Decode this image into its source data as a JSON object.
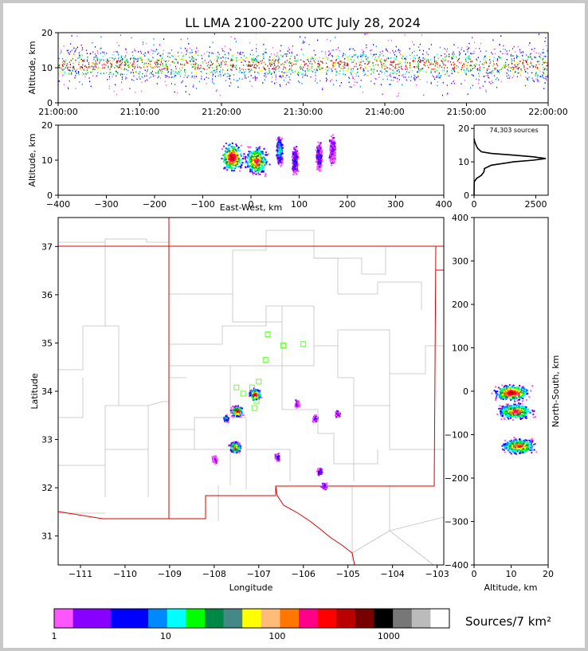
{
  "chart_data": [
    {
      "type": "scatter",
      "panel": "time-altitude",
      "title": "LL LMA 2100-2200 UTC July 28, 2024",
      "xlabel": "",
      "ylabel": "Altitude, km",
      "xticks": [
        "21:00:00",
        "21:10:00",
        "21:20:00",
        "21:30:00",
        "21:40:00",
        "21:50:00",
        "22:00:00"
      ],
      "yticks": [
        "0",
        "10",
        "20"
      ],
      "ylim": [
        0,
        20
      ],
      "band": {
        "center_km": 11,
        "typical_min_km": 6,
        "typical_max_km": 16
      }
    },
    {
      "type": "scatter",
      "panel": "east-west-altitude",
      "xlabel": "East-West, km",
      "ylabel": "Altitude, km",
      "xticks": [
        "−400",
        "−300",
        "−200",
        "−100",
        "0",
        "100",
        "200",
        "300",
        "400"
      ],
      "yticks": [
        "0",
        "10",
        "20"
      ],
      "xlim": [
        -400,
        400
      ],
      "ylim": [
        0,
        20
      ],
      "clusters": [
        {
          "x": -40,
          "y": 11,
          "peak": "dark-red"
        },
        {
          "x": 10,
          "y": 10,
          "peak": "red"
        },
        {
          "x": 58,
          "y": 13,
          "peak": "green"
        },
        {
          "x": 90,
          "y": 10,
          "peak": "blue"
        },
        {
          "x": 140,
          "y": 11,
          "peak": "blue"
        },
        {
          "x": 168,
          "y": 13,
          "peak": "purple"
        }
      ]
    },
    {
      "type": "line",
      "panel": "altitude-histogram",
      "annotation": "74,303 sources",
      "xticks": [
        "0",
        "2500"
      ],
      "yticks": [
        "0",
        "10",
        "20"
      ],
      "xlim": [
        0,
        3000
      ],
      "ylim": [
        0,
        21
      ],
      "points": [
        [
          0,
          0
        ],
        [
          5,
          4
        ],
        [
          100,
          5
        ],
        [
          300,
          6
        ],
        [
          400,
          7
        ],
        [
          420,
          8
        ],
        [
          700,
          9
        ],
        [
          1600,
          10
        ],
        [
          2400,
          10.5
        ],
        [
          2900,
          11
        ],
        [
          2400,
          11.5
        ],
        [
          1600,
          12
        ],
        [
          700,
          12.5
        ],
        [
          300,
          13
        ],
        [
          150,
          14
        ],
        [
          80,
          15
        ],
        [
          30,
          16
        ],
        [
          0,
          17
        ]
      ]
    },
    {
      "type": "scatter",
      "panel": "plan-view-map",
      "xlabel": "Longitude",
      "ylabel": "Latitude",
      "xticks": [
        "−111",
        "−110",
        "−109",
        "−108",
        "−107",
        "−106",
        "−105",
        "−104",
        "−103"
      ],
      "yticks": [
        "31",
        "32",
        "33",
        "34",
        "35",
        "36",
        "37"
      ],
      "xlim": [
        -111.5,
        -102.85
      ],
      "ylim": [
        30.4,
        37.6
      ],
      "stations": [
        {
          "lon": -106.8,
          "lat": 35.18
        },
        {
          "lon": -106.45,
          "lat": 34.95
        },
        {
          "lon": -106.0,
          "lat": 34.98
        },
        {
          "lon": -106.85,
          "lat": 34.65
        },
        {
          "lon": -107.0,
          "lat": 34.2
        },
        {
          "lon": -107.15,
          "lat": 34.08
        },
        {
          "lon": -107.5,
          "lat": 34.08
        },
        {
          "lon": -107.35,
          "lat": 33.95
        },
        {
          "lon": -107.05,
          "lat": 33.8
        },
        {
          "lon": -107.1,
          "lat": 33.65
        }
      ],
      "clusters": [
        {
          "lon": -107.1,
          "lat": 33.95,
          "peak": "dark-red"
        },
        {
          "lon": -107.5,
          "lat": 33.6,
          "peak": "dark-red"
        },
        {
          "lon": -107.75,
          "lat": 33.45,
          "peak": "green"
        },
        {
          "lon": -107.55,
          "lat": 32.85,
          "peak": "red"
        },
        {
          "lon": -106.6,
          "lat": 32.65,
          "peak": "blue"
        },
        {
          "lon": -108.0,
          "lat": 32.6,
          "peak": "purple"
        },
        {
          "lon": -105.25,
          "lat": 33.55,
          "peak": "blue"
        },
        {
          "lon": -105.75,
          "lat": 33.45,
          "peak": "blue"
        },
        {
          "lon": -106.15,
          "lat": 33.75,
          "peak": "purple"
        },
        {
          "lon": -105.65,
          "lat": 32.35,
          "peak": "blue"
        },
        {
          "lon": -105.55,
          "lat": 32.05,
          "peak": "blue"
        }
      ]
    },
    {
      "type": "scatter",
      "panel": "altitude-north-south",
      "xlabel": "Altitude, km",
      "ylabel": "North-South, km",
      "xticks": [
        "0",
        "10",
        "20"
      ],
      "yticks": [
        "−400",
        "−300",
        "−200",
        "−100",
        "0",
        "100",
        "200",
        "300",
        "400"
      ],
      "xlim": [
        0,
        20
      ],
      "ylim": [
        -400,
        400
      ],
      "clusters": [
        {
          "x": 10,
          "y": -2,
          "peak": "dark-red"
        },
        {
          "x": 11,
          "y": -45,
          "peak": "red"
        },
        {
          "x": 12,
          "y": -125,
          "peak": "red"
        }
      ]
    }
  ],
  "colorbar": {
    "label": "Sources/7 km²",
    "tick_labels": [
      "1",
      "10",
      "100",
      "1000"
    ],
    "tick_values": [
      1,
      10,
      100,
      1000
    ],
    "range": [
      1,
      3500
    ],
    "colors": [
      "#ff55ff",
      "#8800ff",
      "#8800ff",
      "#0000ff",
      "#0000ff",
      "#0088ff",
      "#00ffff",
      "#00ff00",
      "#008844",
      "#448888",
      "#ffff00",
      "#ffbb77",
      "#ff7700",
      "#ff0088",
      "#ff0000",
      "#bb0000",
      "#770000",
      "#000000",
      "#777777",
      "#bbbbbb",
      "#ffffff"
    ]
  }
}
